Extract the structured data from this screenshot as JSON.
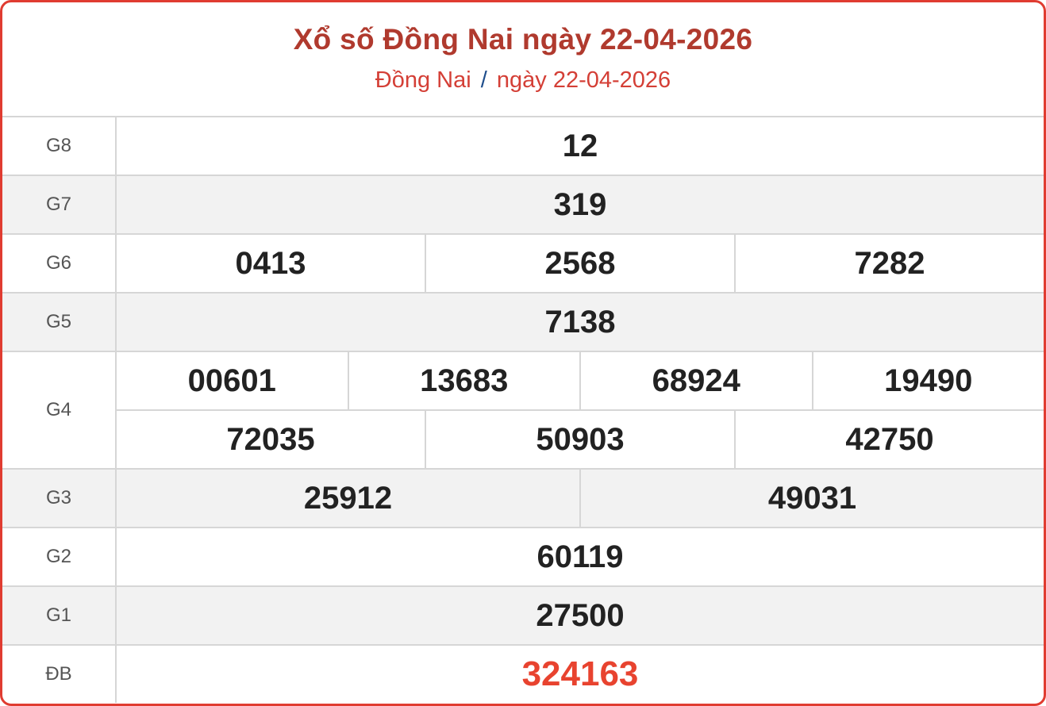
{
  "title": "Xổ số Đồng Nai ngày 22-04-2026",
  "breadcrumb": {
    "province": "Đồng Nai",
    "separator": "/",
    "date": "ngày 22-04-2026"
  },
  "prizes": [
    {
      "label": "G8",
      "rows": [
        [
          "12"
        ]
      ]
    },
    {
      "label": "G7",
      "rows": [
        [
          "319"
        ]
      ]
    },
    {
      "label": "G6",
      "rows": [
        [
          "0413",
          "2568",
          "7282"
        ]
      ]
    },
    {
      "label": "G5",
      "rows": [
        [
          "7138"
        ]
      ]
    },
    {
      "label": "G4",
      "rows": [
        [
          "00601",
          "13683",
          "68924",
          "19490"
        ],
        [
          "72035",
          "50903",
          "42750"
        ]
      ]
    },
    {
      "label": "G3",
      "rows": [
        [
          "25912",
          "49031"
        ]
      ]
    },
    {
      "label": "G2",
      "rows": [
        [
          "60119"
        ]
      ]
    },
    {
      "label": "G1",
      "rows": [
        [
          "27500"
        ]
      ]
    },
    {
      "label": "ĐB",
      "rows": [
        [
          "324163"
        ]
      ]
    }
  ],
  "colors": {
    "border": "#e03c31",
    "title": "#b03a2e",
    "special": "#e8432f",
    "separator": "#1f4e8c"
  }
}
